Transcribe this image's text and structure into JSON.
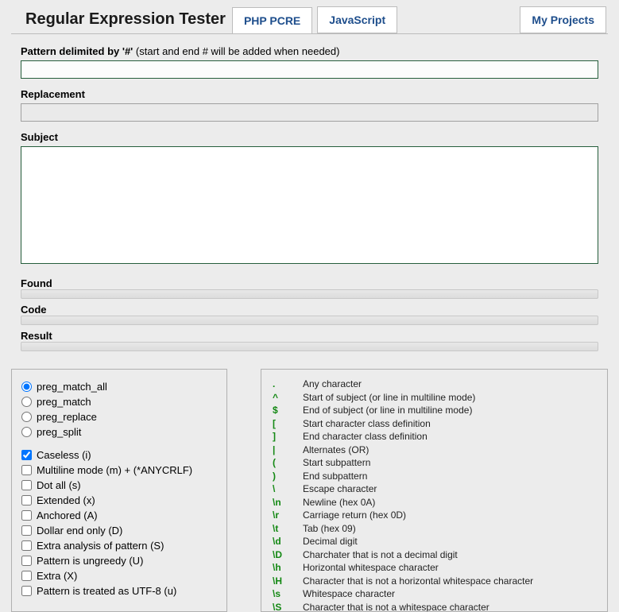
{
  "title": "Regular Expression Tester",
  "tabs": {
    "php": "PHP PCRE",
    "js": "JavaScript",
    "myprojects": "My Projects"
  },
  "labels": {
    "pattern": "Pattern delimited by '#'",
    "pattern_hint": " (start and end # will be added when needed)",
    "replacement": "Replacement",
    "subject": "Subject",
    "found": "Found",
    "code": "Code",
    "result": "Result"
  },
  "inputs": {
    "pattern": "",
    "replacement": "",
    "subject": ""
  },
  "funcs": [
    "preg_match_all",
    "preg_match",
    "preg_replace",
    "preg_split"
  ],
  "func_selected": 0,
  "flags": [
    {
      "label": "Caseless (i)",
      "checked": true
    },
    {
      "label": "Multiline mode (m) + (*ANYCRLF)",
      "checked": false
    },
    {
      "label": "Dot all (s)",
      "checked": false
    },
    {
      "label": "Extended (x)",
      "checked": false
    },
    {
      "label": "Anchored (A)",
      "checked": false
    },
    {
      "label": "Dollar end only (D)",
      "checked": false
    },
    {
      "label": "Extra analysis of pattern (S)",
      "checked": false
    },
    {
      "label": "Pattern is ungreedy (U)",
      "checked": false
    },
    {
      "label": "Extra (X)",
      "checked": false
    },
    {
      "label": "Pattern is treated as UTF-8 (u)",
      "checked": false
    }
  ],
  "reference": [
    {
      "sym": ".",
      "desc": "Any character"
    },
    {
      "sym": "^",
      "desc": "Start of subject (or line in multiline mode)"
    },
    {
      "sym": "$",
      "desc": "End of subject (or line in multiline mode)"
    },
    {
      "sym": "[",
      "desc": "Start character class definition"
    },
    {
      "sym": "]",
      "desc": "End character class definition"
    },
    {
      "sym": "|",
      "desc": "Alternates (OR)"
    },
    {
      "sym": "(",
      "desc": "Start subpattern"
    },
    {
      "sym": ")",
      "desc": "End subpattern"
    },
    {
      "sym": "\\",
      "desc": "Escape character"
    },
    {
      "sym": "\\n",
      "desc": "Newline (hex 0A)"
    },
    {
      "sym": "\\r",
      "desc": "Carriage return (hex 0D)"
    },
    {
      "sym": "\\t",
      "desc": "Tab (hex 09)"
    },
    {
      "sym": "\\d",
      "desc": "Decimal digit"
    },
    {
      "sym": "\\D",
      "desc": "Charchater that is not a decimal digit"
    },
    {
      "sym": "\\h",
      "desc": "Horizontal whitespace character"
    },
    {
      "sym": "\\H",
      "desc": "Character that is not a horizontal whitespace character"
    },
    {
      "sym": "\\s",
      "desc": "Whitespace character"
    },
    {
      "sym": "\\S",
      "desc": "Character that is not a whitespace character"
    }
  ],
  "colors": {
    "accent_border": "#265e3c",
    "tab_text": "#1e4e8c",
    "ref_symbol": "#138813",
    "bg": "#ececec"
  }
}
